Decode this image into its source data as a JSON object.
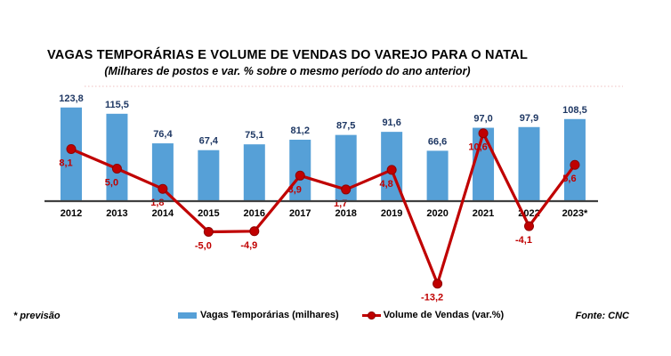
{
  "title": "VAGAS TEMPORÁRIAS E VOLUME DE VENDAS DO VAREJO PARA O NATAL",
  "subtitle": "(Milhares de postos e var. % sobre o mesmo período do ano anterior)",
  "footnote": "* previsão",
  "source": "Fonte: CNC",
  "legend": {
    "bar_label": "Vagas Temporárias (milhares)",
    "line_label": "Volume de Vendas (var.%)"
  },
  "colors": {
    "bar_fill": "#56A0D7",
    "bar_value_label": "#1F3864",
    "line": "#C00000",
    "line_marker_edge": "#8F0000",
    "line_value_label": "#C00000",
    "axis": "#404040",
    "year_label": "#000000",
    "faint_rule": "rgba(192,0,0,0.25)"
  },
  "chart_data": {
    "type": "bar+line",
    "categories": [
      "2012",
      "2013",
      "2014",
      "2015",
      "2016",
      "2017",
      "2018",
      "2019",
      "2020",
      "2021",
      "2022",
      "2023*"
    ],
    "series": [
      {
        "name": "Vagas Temporárias (milhares)",
        "type": "bar",
        "values": [
          123.8,
          115.5,
          76.4,
          67.4,
          75.1,
          81.2,
          87.5,
          91.6,
          66.6,
          97.0,
          97.9,
          108.5
        ],
        "labels": [
          "123,8",
          "115,5",
          "76,4",
          "67,4",
          "75,1",
          "81,2",
          "87,5",
          "91,6",
          "66,6",
          "97,0",
          "97,9",
          "108,5"
        ]
      },
      {
        "name": "Volume de Vendas (var.%)",
        "type": "line",
        "values": [
          8.1,
          5.0,
          1.8,
          -5.0,
          -4.9,
          3.9,
          1.7,
          4.8,
          -13.2,
          10.6,
          -4.1,
          5.6
        ],
        "labels": [
          "8,1",
          "5,0",
          "1,8",
          "-5,0",
          "-4,9",
          "3,9",
          "1,7",
          "4,8",
          "-13,2",
          "10,6",
          "-4,1",
          "5,6"
        ]
      }
    ],
    "title": "VAGAS TEMPORÁRIAS E VOLUME DE VENDAS DO VAREJO PARA O NATAL",
    "subtitle": "(Milhares de postos e var. % sobre o mesmo período do ano anterior)",
    "xlabel": "",
    "ylabel": "",
    "bar_axis_implied_range": [
      0,
      140
    ],
    "line_axis_implied_range": [
      -15,
      12
    ],
    "grid": false,
    "legend_position": "bottom",
    "data_labels": true
  }
}
